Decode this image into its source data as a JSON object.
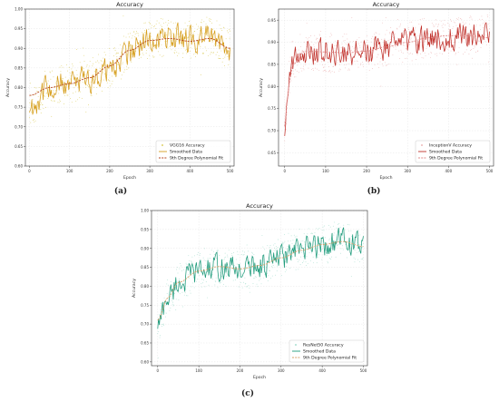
{
  "chart_data": [
    {
      "type": "line",
      "title": "Accuracy",
      "xlabel": "Epoch",
      "ylabel": "Accuracy",
      "xlim": [
        -10,
        510
      ],
      "ylim": [
        0.6,
        1.0
      ],
      "xticks": [
        0,
        100,
        200,
        300,
        400,
        500
      ],
      "xtick_labels": [
        "0",
        "100",
        "200",
        "300",
        "400",
        "500"
      ],
      "yticks": [
        0.6,
        0.65,
        0.7,
        0.75,
        0.8,
        0.85,
        0.9,
        0.95,
        1.0
      ],
      "ytick_labels": [
        "0.60",
        "0.65",
        "0.70",
        "0.75",
        "0.80",
        "0.85",
        "0.90",
        "0.95",
        "1.00"
      ],
      "grid": true,
      "legend_position": "bottom-right",
      "caption": "(a)",
      "colors": {
        "raw": "#d4c23a",
        "smoothed": "#d69e1c",
        "fit": "#b7441e"
      },
      "series": [
        {
          "name": "VGG16 Accuracy",
          "style": "scatter",
          "seed": 11,
          "anchors": [
            [
              0,
              0.75
            ],
            [
              50,
              0.8
            ],
            [
              100,
              0.81
            ],
            [
              150,
              0.82
            ],
            [
              200,
              0.85
            ],
            [
              250,
              0.89
            ],
            [
              300,
              0.92
            ],
            [
              350,
              0.93
            ],
            [
              400,
              0.92
            ],
            [
              450,
              0.93
            ],
            [
              500,
              0.9
            ]
          ],
          "noise": 0.05
        },
        {
          "name": "Smoothed Data",
          "style": "line",
          "seed": 11,
          "anchors": [
            [
              0,
              0.75
            ],
            [
              50,
              0.8
            ],
            [
              100,
              0.81
            ],
            [
              150,
              0.82
            ],
            [
              200,
              0.85
            ],
            [
              250,
              0.89
            ],
            [
              300,
              0.92
            ],
            [
              350,
              0.93
            ],
            [
              400,
              0.92
            ],
            [
              450,
              0.93
            ],
            [
              500,
              0.9
            ]
          ],
          "noise": 0.03
        },
        {
          "name": "9th Degree Polynomial Fit",
          "style": "dashed",
          "anchors": [
            [
              0,
              0.78
            ],
            [
              50,
              0.8
            ],
            [
              100,
              0.81
            ],
            [
              150,
              0.825
            ],
            [
              200,
              0.855
            ],
            [
              250,
              0.895
            ],
            [
              300,
              0.92
            ],
            [
              350,
              0.925
            ],
            [
              400,
              0.918
            ],
            [
              450,
              0.925
            ],
            [
              500,
              0.9
            ]
          ]
        }
      ]
    },
    {
      "type": "line",
      "title": "Accuracy",
      "xlabel": "Epoch",
      "ylabel": "Accuracy",
      "xlim": [
        -15,
        510
      ],
      "ylim": [
        0.62,
        0.975
      ],
      "xticks": [
        0,
        100,
        200,
        300,
        400,
        500
      ],
      "xtick_labels": [
        "0",
        "100",
        "200",
        "300",
        "400",
        "500"
      ],
      "yticks": [
        0.65,
        0.7,
        0.75,
        0.8,
        0.85,
        0.9,
        0.95
      ],
      "ytick_labels": [
        "0.65",
        "0.70",
        "0.75",
        "0.80",
        "0.85",
        "0.90",
        "0.95"
      ],
      "grid": true,
      "legend_position": "bottom-right",
      "caption": "(b)",
      "colors": {
        "raw": "#e8a4a4",
        "smoothed": "#c0302a",
        "fit": "#e08a8a"
      },
      "series": [
        {
          "name": "InceptionV Accuracy",
          "style": "scatter",
          "seed": 23,
          "anchors": [
            [
              0,
              0.7
            ],
            [
              10,
              0.82
            ],
            [
              20,
              0.86
            ],
            [
              50,
              0.88
            ],
            [
              100,
              0.875
            ],
            [
              150,
              0.88
            ],
            [
              200,
              0.88
            ],
            [
              250,
              0.89
            ],
            [
              300,
              0.9
            ],
            [
              350,
              0.91
            ],
            [
              400,
              0.915
            ],
            [
              450,
              0.915
            ],
            [
              500,
              0.92
            ]
          ],
          "noise": 0.045
        },
        {
          "name": "Smoothed Data",
          "style": "line",
          "seed": 23,
          "anchors": [
            [
              0,
              0.7
            ],
            [
              10,
              0.82
            ],
            [
              20,
              0.86
            ],
            [
              50,
              0.88
            ],
            [
              100,
              0.875
            ],
            [
              150,
              0.88
            ],
            [
              200,
              0.88
            ],
            [
              250,
              0.89
            ],
            [
              300,
              0.9
            ],
            [
              350,
              0.91
            ],
            [
              400,
              0.915
            ],
            [
              450,
              0.915
            ],
            [
              500,
              0.92
            ]
          ],
          "noise": 0.028
        },
        {
          "name": "9th Degree Polynomial Fit",
          "style": "dashed",
          "anchors": [
            [
              0,
              0.71
            ],
            [
              10,
              0.8
            ],
            [
              20,
              0.85
            ],
            [
              50,
              0.88
            ],
            [
              100,
              0.878
            ],
            [
              150,
              0.876
            ],
            [
              200,
              0.88
            ],
            [
              250,
              0.89
            ],
            [
              300,
              0.9
            ],
            [
              350,
              0.91
            ],
            [
              400,
              0.915
            ],
            [
              450,
              0.915
            ],
            [
              500,
              0.91
            ]
          ]
        }
      ]
    },
    {
      "type": "line",
      "title": "Accuracy",
      "xlabel": "Epoch",
      "ylabel": "Accuracy",
      "xlim": [
        -15,
        510
      ],
      "ylim": [
        0.59,
        1.0
      ],
      "xticks": [
        0,
        100,
        200,
        300,
        400,
        500
      ],
      "xtick_labels": [
        "0",
        "100",
        "200",
        "300",
        "400",
        "500"
      ],
      "yticks": [
        0.6,
        0.65,
        0.7,
        0.75,
        0.8,
        0.85,
        0.9,
        0.95,
        1.0
      ],
      "ytick_labels": [
        "0.60",
        "0.65",
        "0.70",
        "0.75",
        "0.80",
        "0.85",
        "0.90",
        "0.95",
        "1.00"
      ],
      "grid": true,
      "legend_position": "bottom-right",
      "caption": "(c)",
      "colors": {
        "raw": "#8fd6c2",
        "smoothed": "#1c9a7a",
        "fit": "#d9a06a"
      },
      "series": [
        {
          "name": "ResNet50 Accuracy",
          "style": "scatter",
          "seed": 37,
          "anchors": [
            [
              0,
              0.7
            ],
            [
              25,
              0.77
            ],
            [
              50,
              0.81
            ],
            [
              100,
              0.84
            ],
            [
              150,
              0.85
            ],
            [
              200,
              0.845
            ],
            [
              250,
              0.855
            ],
            [
              300,
              0.875
            ],
            [
              350,
              0.895
            ],
            [
              400,
              0.91
            ],
            [
              450,
              0.92
            ],
            [
              500,
              0.905
            ]
          ],
          "noise": 0.05
        },
        {
          "name": "Smoothed Data",
          "style": "line",
          "seed": 37,
          "anchors": [
            [
              0,
              0.7
            ],
            [
              25,
              0.77
            ],
            [
              50,
              0.81
            ],
            [
              100,
              0.84
            ],
            [
              150,
              0.85
            ],
            [
              200,
              0.845
            ],
            [
              250,
              0.855
            ],
            [
              300,
              0.875
            ],
            [
              350,
              0.895
            ],
            [
              400,
              0.91
            ],
            [
              450,
              0.92
            ],
            [
              500,
              0.905
            ]
          ],
          "noise": 0.03
        },
        {
          "name": "9th Degree Polynomial Fit",
          "style": "dashed",
          "anchors": [
            [
              0,
              0.71
            ],
            [
              25,
              0.77
            ],
            [
              50,
              0.81
            ],
            [
              100,
              0.84
            ],
            [
              150,
              0.852
            ],
            [
              200,
              0.846
            ],
            [
              250,
              0.855
            ],
            [
              300,
              0.875
            ],
            [
              350,
              0.895
            ],
            [
              400,
              0.91
            ],
            [
              450,
              0.918
            ],
            [
              500,
              0.905
            ]
          ]
        }
      ]
    }
  ]
}
